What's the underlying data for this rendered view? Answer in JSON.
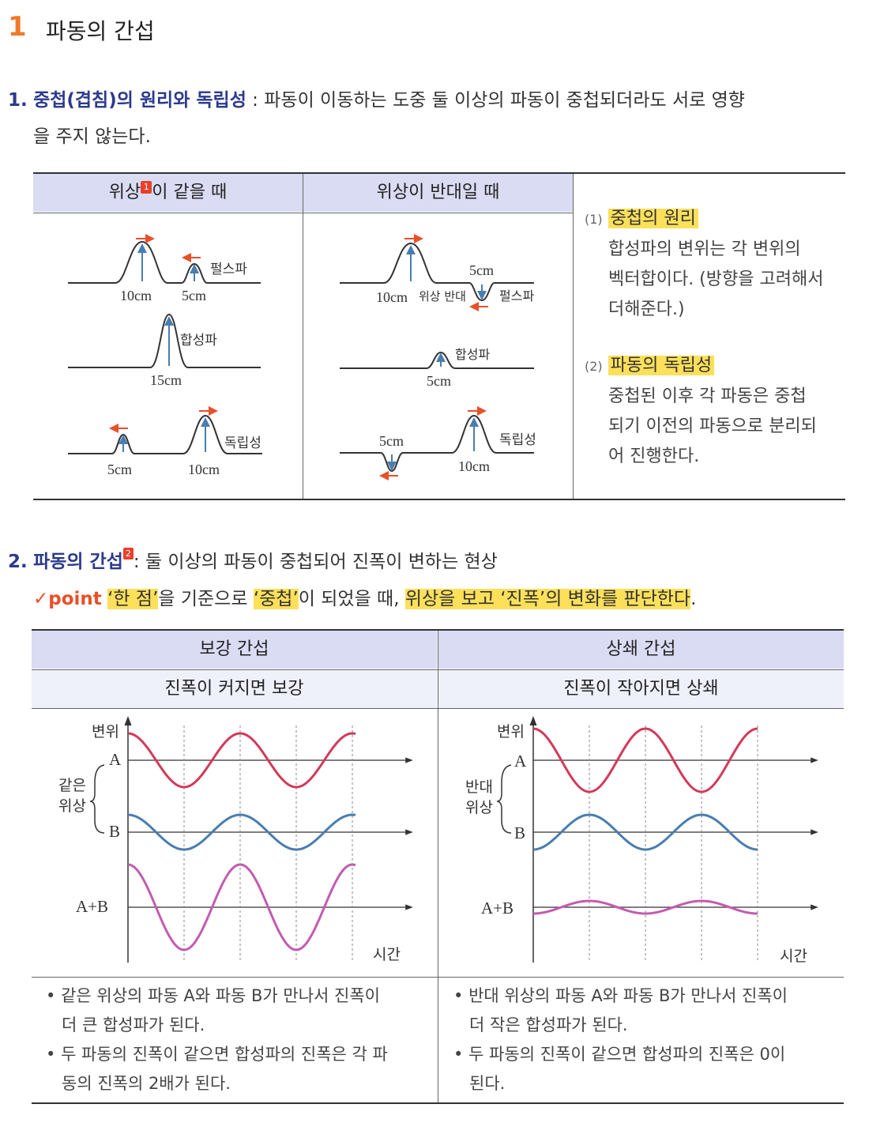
{
  "header": {
    "number": "1",
    "title": "파동의 간섭"
  },
  "section1": {
    "number": "1.",
    "term": "중첩(겹침)의 원리와 독립성",
    "colon": " : ",
    "definition_line1": "파동이 이동하는 도중 둘 이상의 파동이 중첩되더라도 서로 영향",
    "definition_line2": "을 주지 않는다.",
    "table": {
      "col1_header_a": "위상",
      "col1_header_b": "이 같을 때",
      "col2_header": "위상이 반대일 때",
      "footnote_mark": "1",
      "diagram_same": {
        "labels": [
          "펄스파",
          "10cm",
          "5cm",
          "합성파",
          "15cm",
          "독립성",
          "5cm",
          "10cm"
        ]
      },
      "diagram_opposite": {
        "labels": [
          "5cm",
          "10cm",
          "위상 반대",
          "펄스파",
          "합성파",
          "5cm",
          "5cm",
          "독립성",
          "10cm"
        ]
      },
      "notes": [
        {
          "num": "(1)",
          "title": "중첩의 원리",
          "lines": [
            "합성파의 변위는 각 변위의",
            "벡터합이다. (방향을 고려해서",
            "더해준다.)"
          ]
        },
        {
          "num": "(2)",
          "title": "파동의 독립성",
          "lines": [
            "중첩된 이후 각 파동은 중첩",
            "되기 이전의 파동으로 분리되",
            "어 진행한다."
          ]
        }
      ]
    }
  },
  "section2": {
    "number": "2.",
    "term": "파동의 간섭",
    "footnote_mark": "2",
    "definition": ": 둘 이상의 파동이 중첩되어 진폭이 변하는 현상",
    "point": {
      "check": "✓",
      "label": "point",
      "q1": "‘한 점’",
      "t1": "을 기준으로 ",
      "q2": "‘중첩’",
      "t2": "이 되었을 때, ",
      "t3": "위상을 보고 ‘진폭’의 변화를 판단한다",
      "t4": "."
    },
    "table": {
      "left": {
        "header": "보강 간섭",
        "subheader": "진폭이 커지면 보강",
        "y_axis": "변위",
        "x_axis": "시간",
        "phase_label_1": "같은",
        "phase_label_2": "위상",
        "wave_labels": [
          "A",
          "B",
          "A+B"
        ],
        "bullets": [
          [
            "같은 위상의 파동 A와 파동 B가 만나서 진폭이",
            "더 큰 합성파가 된다."
          ],
          [
            "두 파동의 진폭이 같으면 합성파의 진폭은 각 파",
            "동의 진폭의 2배가 된다."
          ]
        ]
      },
      "right": {
        "header": "상쇄 간섭",
        "subheader": "진폭이 작아지면 상쇄",
        "y_axis": "변위",
        "x_axis": "시간",
        "phase_label_1": "반대",
        "phase_label_2": "위상",
        "wave_labels": [
          "A",
          "B",
          "A+B"
        ],
        "bullets": [
          [
            "반대 위상의 파동 A와 파동 B가 만나서 진폭이",
            "더 작은 합성파가 된다."
          ],
          [
            "두 파동의 진폭이 같으면 합성파의 진폭은 0이",
            "된다."
          ]
        ]
      }
    }
  },
  "colors": {
    "accent_orange": "#f07a2a",
    "navy": "#2b3a8c",
    "highlight": "#fde05a",
    "header_bg": "#d9dcf3",
    "wave_a": "#d23a5a",
    "wave_b": "#4a7db0",
    "wave_sum": "#c45bb0",
    "arrow": "#e8502a"
  }
}
